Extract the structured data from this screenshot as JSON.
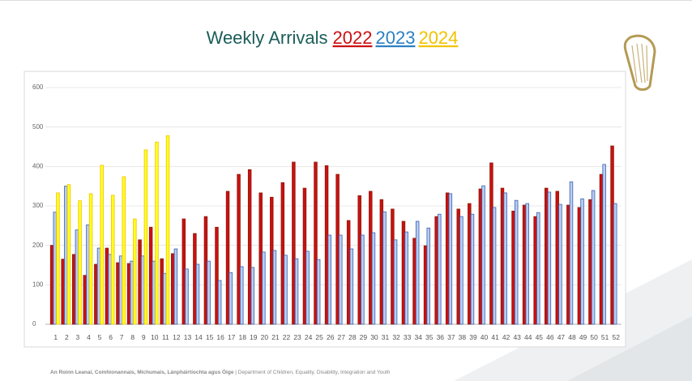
{
  "chart_data": {
    "type": "bar",
    "title": "Weekly Arrivals",
    "categories": [
      "1",
      "2",
      "3",
      "4",
      "5",
      "6",
      "7",
      "8",
      "9",
      "10",
      "11",
      "12",
      "13",
      "14",
      "15",
      "16",
      "17",
      "18",
      "19",
      "20",
      "21",
      "22",
      "23",
      "24",
      "25",
      "26",
      "27",
      "28",
      "29",
      "30",
      "31",
      "32",
      "33",
      "34",
      "35",
      "36",
      "37",
      "38",
      "39",
      "40",
      "41",
      "42",
      "43",
      "44",
      "45",
      "46",
      "47",
      "48",
      "49",
      "50",
      "51",
      "52"
    ],
    "series": [
      {
        "name": "2022",
        "color": "#cc1010",
        "values": [
          200,
          165,
          177,
          124,
          152,
          193,
          156,
          154,
          214,
          246,
          166,
          179,
          267,
          230,
          273,
          246,
          337,
          380,
          392,
          333,
          322,
          359,
          411,
          345,
          411,
          402,
          380,
          263,
          326,
          337,
          316,
          292,
          261,
          218,
          199,
          273,
          333,
          292,
          306,
          343,
          409,
          345,
          287,
          302,
          273,
          345,
          337,
          302,
          296,
          316,
          380,
          452
        ]
      },
      {
        "name": "2023",
        "color": "#2a80c4",
        "values": [
          284,
          350,
          239,
          252,
          193,
          177,
          173,
          160,
          173,
          160,
          129,
          191,
          140,
          152,
          160,
          111,
          131,
          146,
          144,
          183,
          187,
          175,
          166,
          185,
          164,
          226,
          226,
          191,
          226,
          232,
          285,
          214,
          234,
          261,
          244,
          279,
          331,
          273,
          279,
          351,
          296,
          333,
          314,
          306,
          283,
          335,
          304,
          361,
          318,
          339,
          405,
          306
        ]
      },
      {
        "name": "2024",
        "color": "#f2c200",
        "values": [
          333,
          354,
          313,
          331,
          403,
          327,
          374,
          267,
          442,
          462,
          478,
          null,
          null,
          null,
          null,
          null,
          null,
          null,
          null,
          null,
          null,
          null,
          null,
          null,
          null,
          null,
          null,
          null,
          null,
          null,
          null,
          null,
          null,
          null,
          null,
          null,
          null,
          null,
          null,
          null,
          null,
          null,
          null,
          null,
          null,
          null,
          null,
          null,
          null,
          null,
          null,
          null
        ]
      }
    ],
    "ylim": [
      0,
      600
    ],
    "yticks": [
      0,
      100,
      200,
      300,
      400,
      500,
      600
    ],
    "grid": true
  },
  "footer": {
    "department_irish": "An Roinn Leanaí, Comhionannais, Míchumais, Lánpháirtíochta agus Óige",
    "department_english": " | Department of Children, Equality, Disability, Integration and Youth"
  }
}
